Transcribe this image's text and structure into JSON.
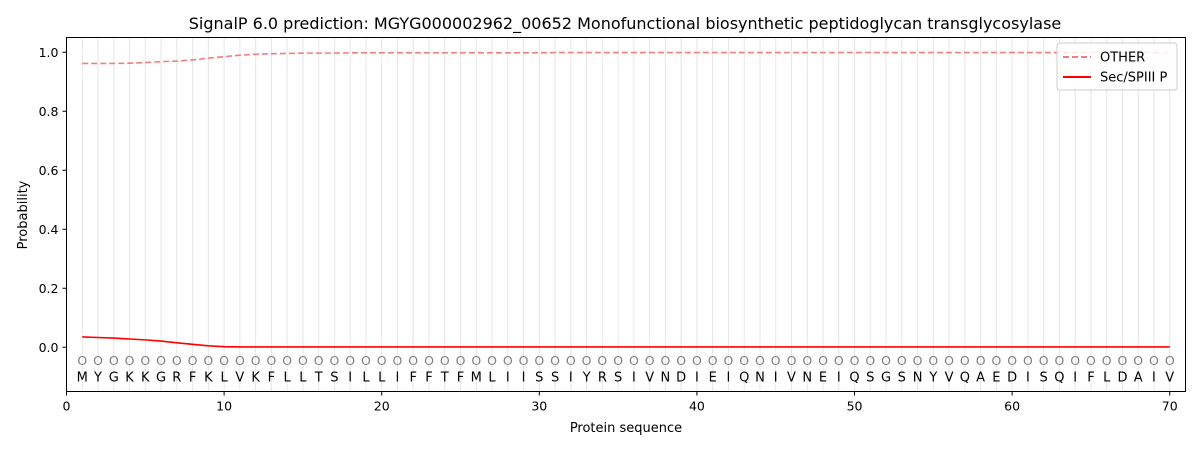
{
  "chart_data": {
    "type": "line",
    "title": "SignalP 6.0 prediction: MGYG000002962_00652 Monofunctional biosynthetic peptidoglycan transglycosylase",
    "xlabel": "Protein sequence",
    "ylabel": "Probability",
    "xlim": [
      0,
      71
    ],
    "ylim": [
      -0.15,
      1.05
    ],
    "xticks": [
      0,
      10,
      20,
      30,
      40,
      50,
      60,
      70
    ],
    "yticks": [
      "0.0",
      "0.2",
      "0.4",
      "0.6",
      "0.8",
      "1.0"
    ],
    "legend_position": "top-right",
    "sequence": [
      "M",
      "Y",
      "G",
      "K",
      "K",
      "G",
      "R",
      "F",
      "K",
      "L",
      "V",
      "K",
      "F",
      "L",
      "L",
      "T",
      "S",
      "I",
      "L",
      "L",
      "I",
      "F",
      "F",
      "T",
      "F",
      "M",
      "L",
      "I",
      "I",
      "S",
      "S",
      "I",
      "Y",
      "R",
      "S",
      "I",
      "V",
      "N",
      "D",
      "I",
      "E",
      "I",
      "Q",
      "N",
      "I",
      "V",
      "N",
      "E",
      "I",
      "Q",
      "S",
      "G",
      "S",
      "N",
      "Y",
      "V",
      "Q",
      "A",
      "E",
      "D",
      "I",
      "S",
      "Q",
      "I",
      "F",
      "L",
      "D",
      "A",
      "I",
      "V"
    ],
    "position_label": "O",
    "position_label_y": -0.045,
    "series": [
      {
        "name": "OTHER",
        "color": "#f08080",
        "style": "dashed",
        "values": [
          0.962,
          0.962,
          0.962,
          0.963,
          0.965,
          0.968,
          0.97,
          0.974,
          0.98,
          0.985,
          0.99,
          0.993,
          0.995,
          0.996,
          0.997,
          0.997,
          0.997,
          0.998,
          0.998,
          0.998,
          0.998,
          0.998,
          0.998,
          0.998,
          0.998,
          0.998,
          0.998,
          0.998,
          0.998,
          0.998,
          0.999,
          0.999,
          0.999,
          0.999,
          0.999,
          0.999,
          0.999,
          0.999,
          0.999,
          0.999,
          0.999,
          0.999,
          0.999,
          0.999,
          0.999,
          0.999,
          0.999,
          0.999,
          0.999,
          0.999,
          0.999,
          0.999,
          0.999,
          0.999,
          0.999,
          0.999,
          0.999,
          0.999,
          0.999,
          0.999,
          0.999,
          0.999,
          0.999,
          0.999,
          0.999,
          0.999,
          0.999,
          0.999,
          0.999,
          0.999
        ]
      },
      {
        "name": "Sec/SPIII P",
        "color": "#ff0000",
        "style": "solid",
        "values": [
          0.035,
          0.033,
          0.031,
          0.028,
          0.025,
          0.021,
          0.015,
          0.01,
          0.005,
          0.002,
          0.001,
          0.001,
          0.001,
          0.001,
          0.001,
          0.001,
          0.001,
          0.001,
          0.001,
          0.001,
          0.001,
          0.001,
          0.001,
          0.001,
          0.001,
          0.001,
          0.001,
          0.001,
          0.001,
          0.001,
          0.001,
          0.001,
          0.001,
          0.001,
          0.001,
          0.001,
          0.001,
          0.001,
          0.001,
          0.001,
          0.001,
          0.001,
          0.001,
          0.001,
          0.001,
          0.001,
          0.001,
          0.001,
          0.001,
          0.001,
          0.001,
          0.001,
          0.001,
          0.001,
          0.001,
          0.001,
          0.001,
          0.001,
          0.001,
          0.001,
          0.001,
          0.001,
          0.001,
          0.001,
          0.001,
          0.001,
          0.001,
          0.001,
          0.001,
          0.001
        ]
      }
    ]
  }
}
